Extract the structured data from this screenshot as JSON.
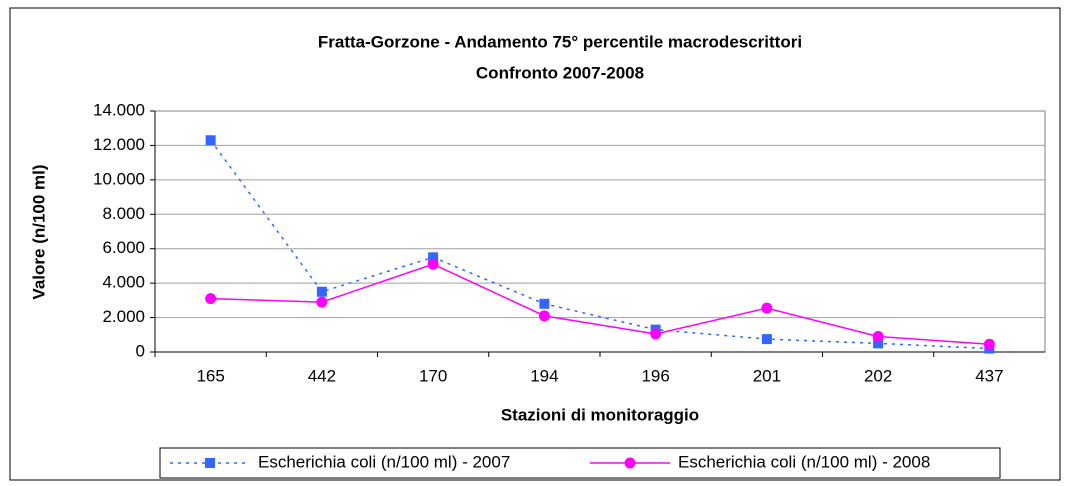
{
  "chart_data": {
    "type": "line",
    "title": "Fratta-Gorzone - Andamento 75° percentile macrodescrittori",
    "subtitle": "Confronto 2007-2008",
    "x_label": "Stazioni di monitoraggio",
    "y_label": "Valore (n/100 ml)",
    "categories": [
      "165",
      "442",
      "170",
      "194",
      "196",
      "201",
      "202",
      "437"
    ],
    "series": [
      {
        "name": "Escherichia coli (n/100 ml) - 2007",
        "color": "#3366ff",
        "line_style": "dotted",
        "marker": "square",
        "values": [
          12300,
          3500,
          5500,
          2800,
          1300,
          750,
          500,
          200
        ]
      },
      {
        "name": "Escherichia coli (n/100 ml) - 2008",
        "color": "#ff00ff",
        "line_style": "solid",
        "marker": "circle",
        "values": [
          3100,
          2900,
          5100,
          2100,
          1050,
          2550,
          900,
          450
        ]
      }
    ],
    "ylim": [
      0,
      14000
    ],
    "yticks": [
      0,
      {
        "value": 2000,
        "label": "2.000"
      },
      {
        "value": 4000,
        "label": "4.000"
      },
      {
        "value": 6000,
        "label": "6.000"
      },
      {
        "value": 8000,
        "label": "8.000"
      },
      {
        "value": 10000,
        "label": "10.000"
      },
      {
        "value": 12000,
        "label": "12.000"
      },
      {
        "value": 14000,
        "label": "14.000"
      }
    ],
    "grid": true,
    "legend": "bottom"
  }
}
